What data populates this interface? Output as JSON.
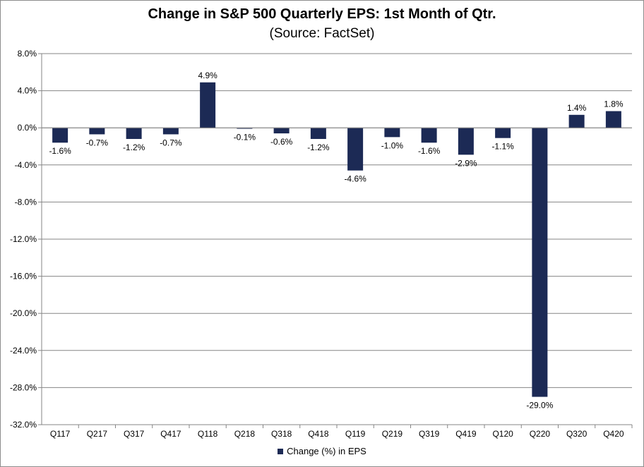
{
  "chart_data": {
    "type": "bar",
    "title": "Change in S&P 500 Quarterly EPS: 1st Month of Qtr.",
    "subtitle": "(Source: FactSet)",
    "xlabel": "",
    "ylabel": "",
    "categories": [
      "Q117",
      "Q217",
      "Q317",
      "Q417",
      "Q118",
      "Q218",
      "Q318",
      "Q418",
      "Q119",
      "Q219",
      "Q319",
      "Q419",
      "Q120",
      "Q220",
      "Q320",
      "Q420"
    ],
    "series": [
      {
        "name": "Change (%) in EPS",
        "color": "#1c2a55",
        "values": [
          -1.6,
          -0.7,
          -1.2,
          -0.7,
          4.9,
          -0.1,
          -0.6,
          -1.2,
          -4.6,
          -1.0,
          -1.6,
          -2.9,
          -1.1,
          -29.0,
          1.4,
          1.8
        ],
        "labels": [
          "-1.6%",
          "-0.7%",
          "-1.2%",
          "-0.7%",
          "4.9%",
          "-0.1%",
          "-0.6%",
          "-1.2%",
          "-4.6%",
          "-1.0%",
          "-1.6%",
          "-2.9%",
          "-1.1%",
          "-29.0%",
          "1.4%",
          "1.8%"
        ]
      }
    ],
    "ylim": [
      -32,
      8
    ],
    "yticks": [
      8,
      4,
      0,
      -4,
      -8,
      -12,
      -16,
      -20,
      -24,
      -28,
      -32
    ],
    "ytick_labels": [
      "8.0%",
      "4.0%",
      "0.0%",
      "-4.0%",
      "-8.0%",
      "-12.0%",
      "-16.0%",
      "-20.0%",
      "-24.0%",
      "-28.0%",
      "-32.0%"
    ],
    "grid": true,
    "legend_position": "bottom"
  }
}
